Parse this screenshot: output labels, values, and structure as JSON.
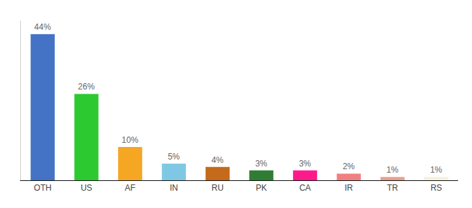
{
  "chart_data": {
    "type": "bar",
    "categories": [
      "OTH",
      "US",
      "AF",
      "IN",
      "RU",
      "PK",
      "CA",
      "IR",
      "TR",
      "RS"
    ],
    "values": [
      44,
      26,
      10,
      5,
      4,
      3,
      3,
      2,
      1,
      1
    ],
    "value_labels": [
      "44%",
      "26%",
      "10%",
      "5%",
      "4%",
      "3%",
      "3%",
      "2%",
      "1%",
      "1%"
    ],
    "colors": [
      "#4472c4",
      "#2dc930",
      "#f5a623",
      "#7ec8e3",
      "#c46a1a",
      "#2e7d32",
      "#ff1a8c",
      "#f08080",
      "#e8a090",
      "#f5f0d8"
    ],
    "ylim": [
      0,
      48
    ],
    "grid": false,
    "data_labels": true,
    "tick_labels": "x"
  }
}
